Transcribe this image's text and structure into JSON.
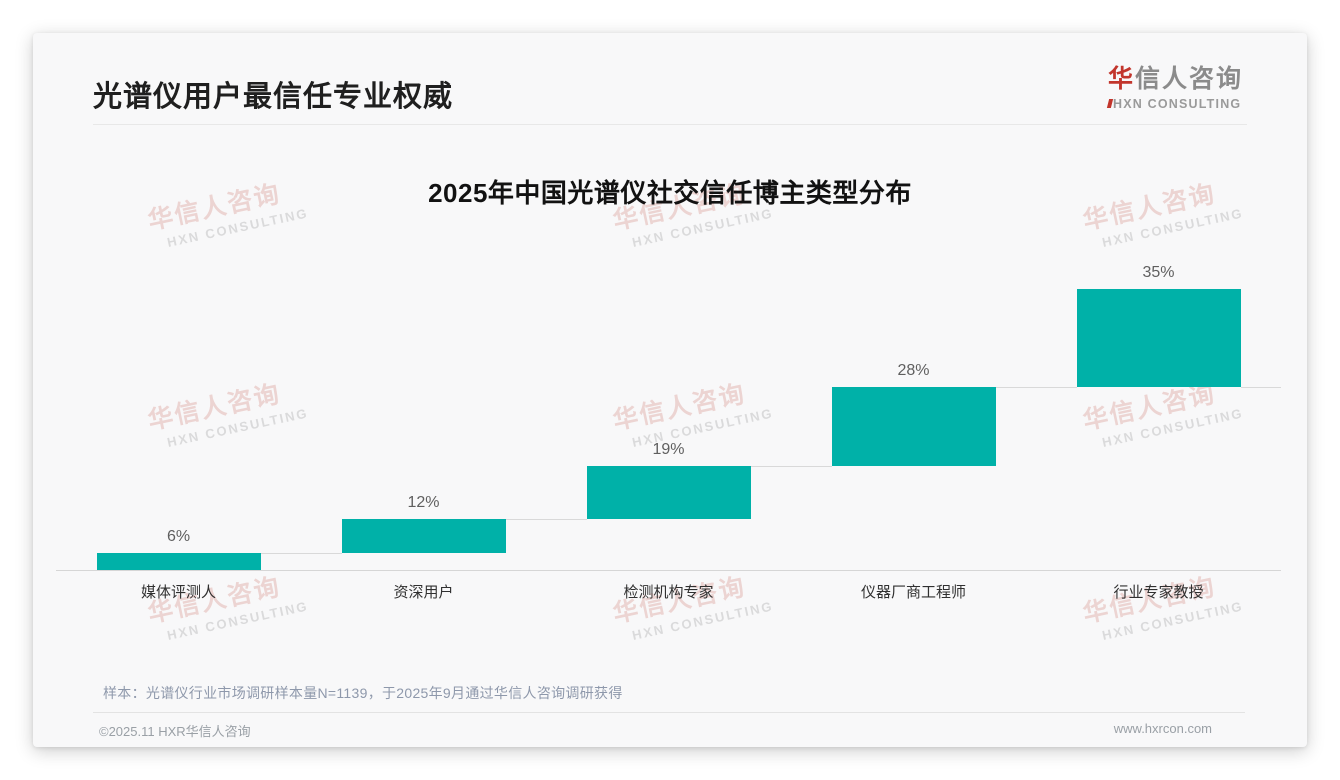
{
  "header": {
    "title": "光谱仪用户最信任专业权威",
    "logo": {
      "accent_char": "华",
      "rest_chars": "信人咨询",
      "subtitle": "HXN CONSULTING"
    }
  },
  "watermark": {
    "cn": "华信人咨询",
    "en": "HXN CONSULTING"
  },
  "chart_data": {
    "type": "bar",
    "subtype": "cumulative-waterfall-steps",
    "title": "2025年中国光谱仪社交信任博主类型分布",
    "categories": [
      "媒体评测人",
      "资深用户",
      "检测机构专家",
      "仪器厂商工程师",
      "行业专家教授"
    ],
    "values": [
      6,
      12,
      19,
      28,
      35
    ],
    "value_labels": [
      "6%",
      "12%",
      "19%",
      "28%",
      "35%"
    ],
    "unit": "%",
    "cumulative_total": 100,
    "ylim": [
      0,
      100
    ],
    "grid": false,
    "legend": false,
    "xlabel": "",
    "ylabel": "",
    "bar_color": "#00b1a8",
    "connector_color": "#d9d9d9"
  },
  "footer": {
    "note": "样本：光谱仪行业市场调研样本量N=1139，于2025年9月通过华信人咨询调研获得",
    "copyright": "©2025.11 HXR华信人咨询",
    "website": "www.hxrcon.com"
  },
  "colors": {
    "accent_red": "#c2352c",
    "bar_teal": "#00b1a8",
    "title_text": "#1f1f1f",
    "note_text": "#8e98ab",
    "footer_text": "#9aa0a6"
  }
}
